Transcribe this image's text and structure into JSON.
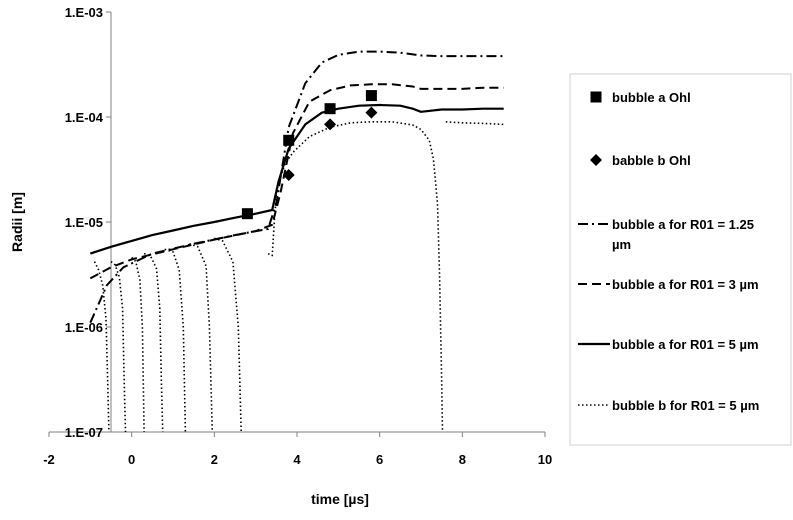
{
  "chart_data": {
    "type": "scatter",
    "title": "",
    "xlabel": "time [µs]",
    "ylabel": "Radii [m]",
    "xlim": [
      -2,
      10
    ],
    "ylim": [
      1e-07,
      0.001
    ],
    "y_scale": "log",
    "grid": false,
    "legend_position": "right",
    "x_ticks": [
      "-2",
      "0",
      "2",
      "4",
      "6",
      "8",
      "10"
    ],
    "y_ticks": [
      "1.E-07",
      "1.E-06",
      "1.E-05",
      "1.E-04",
      "1.E-03"
    ],
    "series": [
      {
        "name": "bubble a Ohl",
        "marker": "square",
        "line": "none",
        "x": [
          2.8,
          3.8,
          4.8,
          5.8
        ],
        "y": [
          1.2e-05,
          6e-05,
          0.00012,
          0.00016
        ]
      },
      {
        "name": "babble b Ohl",
        "marker": "diamond",
        "line": "none",
        "x": [
          3.8,
          4.8,
          5.8
        ],
        "y": [
          2.8e-05,
          8.5e-05,
          0.00011
        ]
      },
      {
        "name": "bubble a for R01 = 1.25 µm",
        "marker": "none",
        "line": "dashdot",
        "x": [
          -1.0,
          -0.6,
          -0.2,
          0.5,
          1.5,
          2.5,
          3.3,
          3.5,
          3.8,
          4.2,
          4.6,
          5.0,
          5.5,
          6.0,
          6.5,
          7.0,
          7.5,
          8.0,
          8.5,
          9.0
        ],
        "y": [
          1.1e-06,
          2.5e-06,
          3.7e-06,
          5e-06,
          6.2e-06,
          7.5e-06,
          8.6e-06,
          1.5e-05,
          8e-05,
          0.00021,
          0.00033,
          0.00039,
          0.00042,
          0.00042,
          0.00041,
          0.000385,
          0.00038,
          0.00038,
          0.00038,
          0.00038
        ]
      },
      {
        "name": "bubble a for R01 = 3 µm",
        "marker": "none",
        "line": "dashed",
        "x": [
          -1.0,
          -0.5,
          0.0,
          1.0,
          2.0,
          3.0,
          3.4,
          3.6,
          3.9,
          4.3,
          4.8,
          5.3,
          5.8,
          6.3,
          6.8,
          7.0,
          7.5,
          8.0,
          8.5,
          9.0
        ],
        "y": [
          2.9e-06,
          3.7e-06,
          4.4e-06,
          5.5e-06,
          6.8e-06,
          8.2e-06,
          9.4e-06,
          1.9e-05,
          7e-05,
          0.00014,
          0.00018,
          0.0002,
          0.000205,
          0.000205,
          0.000195,
          0.000185,
          0.000185,
          0.000185,
          0.00019,
          0.00019
        ]
      },
      {
        "name": "bubble a for R01 = 5 µm",
        "marker": "none",
        "line": "solid",
        "x": [
          -1.0,
          -0.5,
          0.0,
          0.5,
          1.0,
          1.5,
          2.0,
          2.5,
          3.0,
          3.4,
          3.55,
          3.8,
          4.2,
          4.6,
          5.0,
          5.5,
          6.0,
          6.5,
          6.8,
          7.0,
          7.5,
          8.0,
          8.5,
          9.0
        ],
        "y": [
          5e-06,
          5.8e-06,
          6.6e-06,
          7.5e-06,
          8.3e-06,
          9.2e-06,
          1e-05,
          1.1e-05,
          1.2e-05,
          1.3e-05,
          2.4e-05,
          5e-05,
          8.5e-05,
          0.00011,
          0.00012,
          0.000128,
          0.00013,
          0.000128,
          0.00012,
          0.000112,
          0.000118,
          0.000118,
          0.00012,
          0.00012
        ]
      },
      {
        "name": "bubble b for R01 = 5 µm",
        "marker": "none",
        "line": "dotted",
        "segments": [
          {
            "x": [
              -0.9,
              -0.8,
              -0.7,
              -0.62,
              -0.58,
              -0.55
            ],
            "y": [
              4.2e-06,
              3.5e-06,
              2.5e-06,
              1.2e-06,
              3e-07,
              1e-07
            ]
          },
          {
            "x": [
              -0.5,
              -0.4,
              -0.3,
              -0.22,
              -0.18,
              -0.15
            ],
            "y": [
              4.2e-06,
              3.9e-06,
              3e-06,
              1.5e-06,
              3e-07,
              1e-07
            ]
          },
          {
            "x": [
              0.0,
              0.1,
              0.2,
              0.26,
              0.3
            ],
            "y": [
              4.6e-06,
              4.2e-06,
              2.8e-06,
              1e-06,
              1e-07
            ]
          },
          {
            "x": [
              0.3,
              0.45,
              0.6,
              0.68,
              0.72,
              0.75
            ],
            "y": [
              5e-06,
              4.8e-06,
              3.6e-06,
              1.5e-06,
              3e-07,
              1e-07
            ]
          },
          {
            "x": [
              0.8,
              1.0,
              1.15,
              1.25,
              1.3
            ],
            "y": [
              5.5e-06,
              5.2e-06,
              3.5e-06,
              1e-06,
              1e-07
            ]
          },
          {
            "x": [
              1.4,
              1.6,
              1.8,
              1.88,
              1.95
            ],
            "y": [
              6.2e-06,
              5.8e-06,
              3.8e-06,
              1e-06,
              1e-07
            ]
          },
          {
            "x": [
              2.0,
              2.2,
              2.45,
              2.58,
              2.65
            ],
            "y": [
              7e-06,
              6.6e-06,
              4.2e-06,
              1e-06,
              1e-07
            ]
          },
          {
            "x": [
              3.3,
              3.4,
              3.45,
              3.5,
              3.55,
              3.7,
              3.9,
              4.3,
              4.8,
              5.3,
              5.8,
              6.3,
              6.8,
              7.0,
              7.2,
              7.3,
              7.4,
              7.45,
              7.5,
              7.52
            ],
            "y": [
              5e-06,
              4.8e-06,
              1e-05,
              1.8e-05,
              2.3e-05,
              3.5e-05,
              4.6e-05,
              6.5e-05,
              8e-05,
              8.8e-05,
              9e-05,
              9e-05,
              8.4e-05,
              7.6e-05,
              6e-05,
              4e-05,
              1.5e-05,
              3e-06,
              3e-07,
              1e-07
            ]
          },
          {
            "x": [
              7.6,
              8.0,
              8.5,
              9.0
            ],
            "y": [
              9e-05,
              8.8e-05,
              8.7e-05,
              8.5e-05
            ]
          }
        ]
      }
    ]
  }
}
